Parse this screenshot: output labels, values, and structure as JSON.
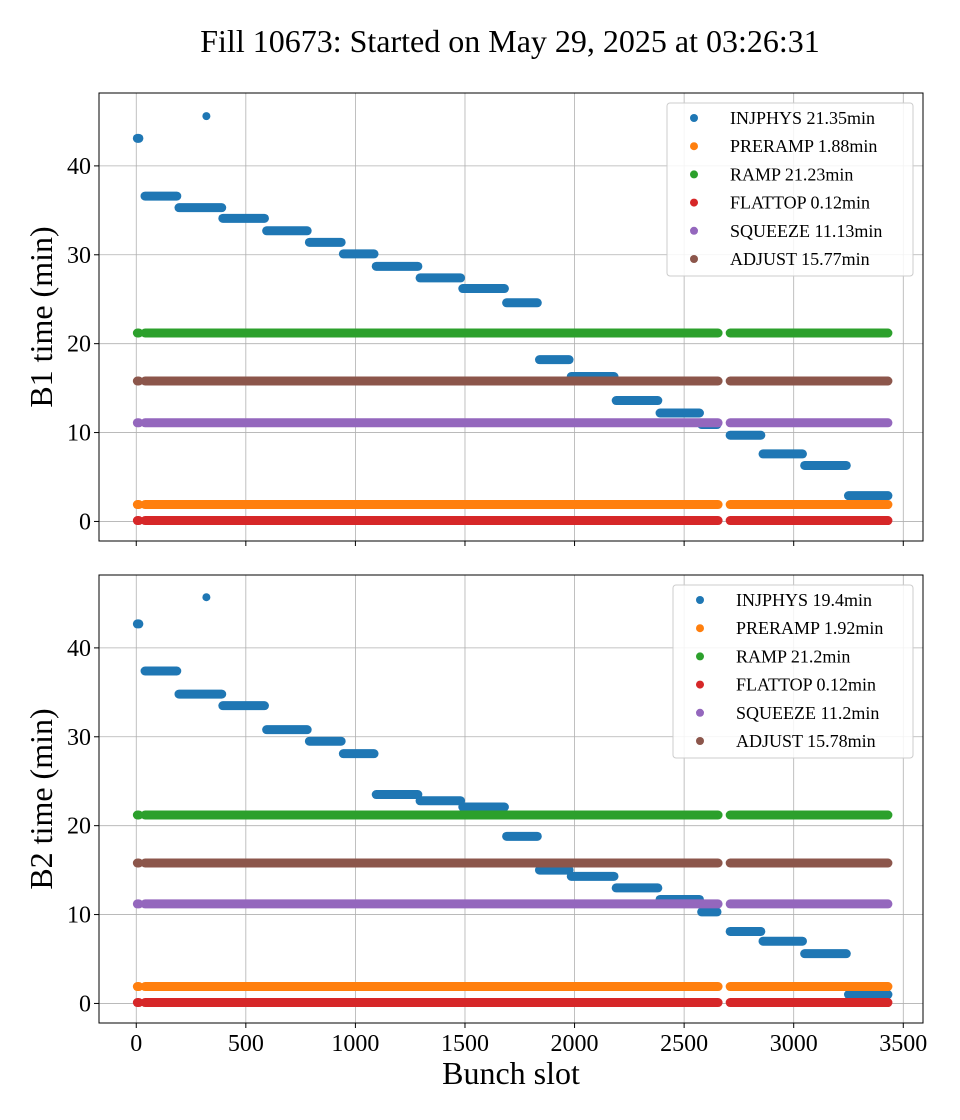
{
  "figure": {
    "title": "Fill 10673: Started on May 29, 2025 at 03:26:31"
  },
  "chart_data": [
    {
      "type": "scatter",
      "ylabel": "B1 time (min)",
      "xlabel": "",
      "xlim": [
        -170,
        3590
      ],
      "ylim": [
        -2.2,
        48.2
      ],
      "xticks": [
        0,
        500,
        1000,
        1500,
        2000,
        2500,
        3000,
        3500
      ],
      "yticks": [
        0,
        10,
        20,
        30,
        40
      ],
      "show_x_tick_labels": false,
      "grid": true,
      "legend_position": "upper right",
      "series": [
        {
          "name": "INJPHYS 21.35min",
          "color": "#1f77b4",
          "segments": [
            [
              5,
              12,
              43.1
            ],
            [
              40,
              185,
              36.6
            ],
            [
              195,
              390,
              35.3
            ],
            [
              395,
              585,
              34.1
            ],
            [
              595,
              780,
              32.7
            ],
            [
              790,
              935,
              31.4
            ],
            [
              945,
              1085,
              30.1
            ],
            [
              1095,
              1285,
              28.7
            ],
            [
              1295,
              1480,
              27.4
            ],
            [
              1490,
              1680,
              26.2
            ],
            [
              1690,
              1830,
              24.6
            ],
            [
              1840,
              1975,
              18.2
            ],
            [
              1985,
              2180,
              16.3
            ],
            [
              2190,
              2380,
              13.6
            ],
            [
              2390,
              2570,
              12.2
            ],
            [
              2580,
              2650,
              10.9
            ],
            [
              2710,
              2850,
              9.7
            ],
            [
              2860,
              3040,
              7.6
            ],
            [
              3050,
              3240,
              6.3
            ],
            [
              3250,
              3430,
              2.9
            ]
          ],
          "points": [
            [
              320,
              45.6
            ]
          ]
        },
        {
          "name": "PRERAMP 1.88min",
          "color": "#ff7f0e",
          "segments": [
            [
              5,
              12,
              1.9
            ],
            [
              40,
              3430,
              1.9
            ]
          ],
          "gaps": [
            [
              2655,
              2710
            ]
          ],
          "points": []
        },
        {
          "name": "RAMP 21.23min",
          "color": "#2ca02c",
          "segments": [
            [
              5,
              12,
              21.2
            ],
            [
              40,
              3430,
              21.2
            ]
          ],
          "gaps": [
            [
              2655,
              2710
            ]
          ],
          "points": []
        },
        {
          "name": "FLATTOP 0.12min",
          "color": "#d62728",
          "segments": [
            [
              5,
              12,
              0.1
            ],
            [
              40,
              3430,
              0.1
            ]
          ],
          "gaps": [
            [
              2655,
              2710
            ]
          ],
          "points": []
        },
        {
          "name": "SQUEEZE 11.13min",
          "color": "#9467bd",
          "segments": [
            [
              5,
              12,
              11.1
            ],
            [
              40,
              3430,
              11.1
            ]
          ],
          "gaps": [
            [
              2655,
              2710
            ]
          ],
          "points": []
        },
        {
          "name": "ADJUST 15.77min",
          "color": "#8c564b",
          "segments": [
            [
              5,
              12,
              15.8
            ],
            [
              40,
              3430,
              15.8
            ]
          ],
          "gaps": [
            [
              2655,
              2710
            ]
          ],
          "points": []
        }
      ]
    },
    {
      "type": "scatter",
      "ylabel": "B2 time (min)",
      "xlabel": "Bunch slot",
      "xlim": [
        -170,
        3590
      ],
      "ylim": [
        -2.2,
        48.2
      ],
      "xticks": [
        0,
        500,
        1000,
        1500,
        2000,
        2500,
        3000,
        3500
      ],
      "yticks": [
        0,
        10,
        20,
        30,
        40
      ],
      "show_x_tick_labels": true,
      "grid": true,
      "legend_position": "upper right",
      "series": [
        {
          "name": "INJPHYS 19.4min",
          "color": "#1f77b4",
          "segments": [
            [
              5,
              12,
              42.7
            ],
            [
              40,
              185,
              37.4
            ],
            [
              195,
              390,
              34.8
            ],
            [
              395,
              585,
              33.5
            ],
            [
              595,
              780,
              30.8
            ],
            [
              790,
              935,
              29.5
            ],
            [
              945,
              1085,
              28.1
            ],
            [
              1095,
              1285,
              23.5
            ],
            [
              1295,
              1480,
              22.8
            ],
            [
              1490,
              1680,
              22.1
            ],
            [
              1690,
              1830,
              18.8
            ],
            [
              1840,
              1975,
              15.0
            ],
            [
              1985,
              2180,
              14.3
            ],
            [
              2190,
              2380,
              13.0
            ],
            [
              2390,
              2570,
              11.7
            ],
            [
              2580,
              2650,
              10.3
            ],
            [
              2710,
              2850,
              8.1
            ],
            [
              2860,
              3040,
              7.0
            ],
            [
              3050,
              3240,
              5.6
            ],
            [
              3250,
              3430,
              1.0
            ]
          ],
          "points": [
            [
              320,
              45.7
            ]
          ]
        },
        {
          "name": "PRERAMP 1.92min",
          "color": "#ff7f0e",
          "segments": [
            [
              5,
              12,
              1.9
            ],
            [
              40,
              3430,
              1.9
            ]
          ],
          "gaps": [
            [
              2655,
              2710
            ]
          ],
          "points": []
        },
        {
          "name": "RAMP 21.2min",
          "color": "#2ca02c",
          "segments": [
            [
              5,
              12,
              21.2
            ],
            [
              40,
              3430,
              21.2
            ]
          ],
          "gaps": [
            [
              2655,
              2710
            ]
          ],
          "points": []
        },
        {
          "name": "FLATTOP 0.12min",
          "color": "#d62728",
          "segments": [
            [
              5,
              12,
              0.1
            ],
            [
              40,
              3430,
              0.1
            ]
          ],
          "gaps": [
            [
              2655,
              2710
            ]
          ],
          "points": []
        },
        {
          "name": "SQUEEZE 11.2min",
          "color": "#9467bd",
          "segments": [
            [
              5,
              12,
              11.2
            ],
            [
              40,
              3430,
              11.2
            ]
          ],
          "gaps": [
            [
              2655,
              2710
            ]
          ],
          "points": []
        },
        {
          "name": "ADJUST 15.78min",
          "color": "#8c564b",
          "segments": [
            [
              5,
              12,
              15.8
            ],
            [
              40,
              3430,
              15.8
            ]
          ],
          "gaps": [
            [
              2655,
              2710
            ]
          ],
          "points": []
        }
      ]
    }
  ]
}
